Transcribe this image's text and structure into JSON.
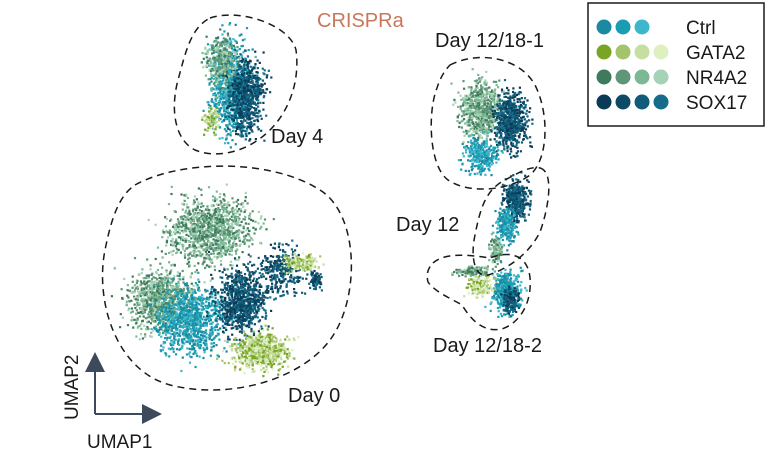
{
  "chart_data": {
    "type": "scatter",
    "title": "CRISPRa",
    "xlabel": "UMAP1",
    "ylabel": "UMAP2",
    "legend_placement": "top-right",
    "grid": false,
    "series": [
      {
        "name": "Ctrl",
        "colors": [
          "#1b8aa0",
          "#1a9db3",
          "#3cb7cc"
        ]
      },
      {
        "name": "GATA2",
        "colors": [
          "#7aa424",
          "#a3c46a",
          "#c7deA0",
          "#def0c0"
        ]
      },
      {
        "name": "NR4A2",
        "colors": [
          "#3f7a5c",
          "#5f9678",
          "#7db895",
          "#a5d3b5"
        ]
      },
      {
        "name": "SOX17",
        "colors": [
          "#0b3a57",
          "#0c4a66",
          "#0f5b78",
          "#166d8a"
        ]
      }
    ],
    "clusters": [
      {
        "label": "Day 0"
      },
      {
        "label": "Day 4"
      },
      {
        "label": "Day 12"
      },
      {
        "label": "Day 12/18-1"
      },
      {
        "label": "Day 12/18-2"
      }
    ]
  }
}
